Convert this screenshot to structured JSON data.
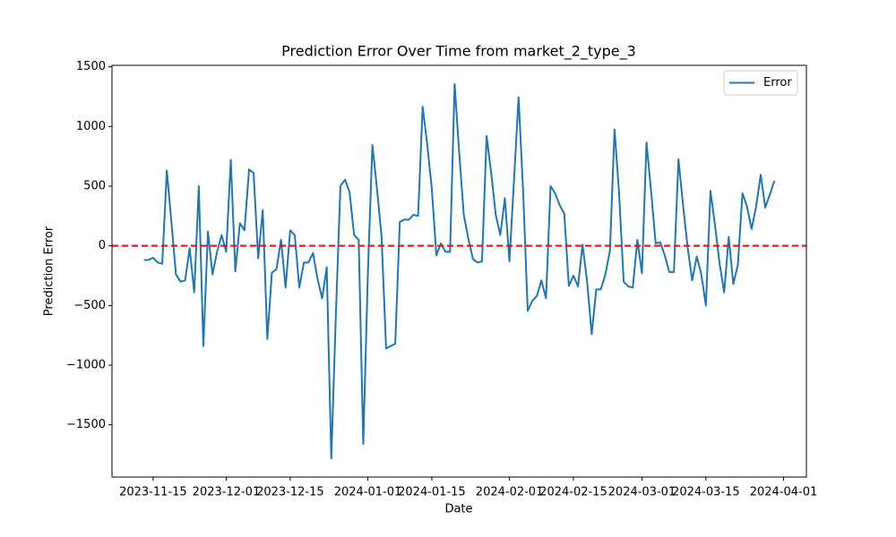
{
  "chart_data": {
    "type": "line",
    "title": "Prediction Error Over Time from market_2_type_3",
    "xlabel": "Date",
    "ylabel": "Prediction Error",
    "x": [
      "2023-11-13",
      "2023-11-14",
      "2023-11-15",
      "2023-11-16",
      "2023-11-17",
      "2023-11-18",
      "2023-11-19",
      "2023-11-20",
      "2023-11-21",
      "2023-11-22",
      "2023-11-23",
      "2023-11-24",
      "2023-11-25",
      "2023-11-26",
      "2023-11-27",
      "2023-11-28",
      "2023-11-29",
      "2023-11-30",
      "2023-12-01",
      "2023-12-02",
      "2023-12-03",
      "2023-12-04",
      "2023-12-05",
      "2023-12-06",
      "2023-12-07",
      "2023-12-08",
      "2023-12-09",
      "2023-12-10",
      "2023-12-11",
      "2023-12-12",
      "2023-12-13",
      "2023-12-14",
      "2023-12-15",
      "2023-12-16",
      "2023-12-17",
      "2023-12-18",
      "2023-12-19",
      "2023-12-20",
      "2023-12-21",
      "2023-12-22",
      "2023-12-23",
      "2023-12-24",
      "2023-12-25",
      "2023-12-26",
      "2023-12-27",
      "2023-12-28",
      "2023-12-29",
      "2023-12-30",
      "2023-12-31",
      "2024-01-01",
      "2024-01-02",
      "2024-01-03",
      "2024-01-04",
      "2024-01-05",
      "2024-01-06",
      "2024-01-07",
      "2024-01-08",
      "2024-01-09",
      "2024-01-10",
      "2024-01-11",
      "2024-01-12",
      "2024-01-13",
      "2024-01-14",
      "2024-01-15",
      "2024-01-16",
      "2024-01-17",
      "2024-01-18",
      "2024-01-19",
      "2024-01-20",
      "2024-01-21",
      "2024-01-22",
      "2024-01-23",
      "2024-01-24",
      "2024-01-25",
      "2024-01-26",
      "2024-01-27",
      "2024-01-28",
      "2024-01-29",
      "2024-01-30",
      "2024-01-31",
      "2024-02-01",
      "2024-02-02",
      "2024-02-03",
      "2024-02-04",
      "2024-02-05",
      "2024-02-06",
      "2024-02-07",
      "2024-02-08",
      "2024-02-09",
      "2024-02-10",
      "2024-02-11",
      "2024-02-12",
      "2024-02-13",
      "2024-02-14",
      "2024-02-15",
      "2024-02-16",
      "2024-02-17",
      "2024-02-18",
      "2024-02-19",
      "2024-02-20",
      "2024-02-21",
      "2024-02-22",
      "2024-02-23",
      "2024-02-24",
      "2024-02-25",
      "2024-02-26",
      "2024-02-27",
      "2024-02-28",
      "2024-02-29",
      "2024-03-01",
      "2024-03-02",
      "2024-03-03",
      "2024-03-04",
      "2024-03-05",
      "2024-03-06",
      "2024-03-07",
      "2024-03-08",
      "2024-03-09",
      "2024-03-10",
      "2024-03-11",
      "2024-03-12",
      "2024-03-13",
      "2024-03-14",
      "2024-03-15",
      "2024-03-16",
      "2024-03-17",
      "2024-03-18",
      "2024-03-19",
      "2024-03-20",
      "2024-03-21",
      "2024-03-22",
      "2024-03-23",
      "2024-03-24",
      "2024-03-25",
      "2024-03-26",
      "2024-03-27",
      "2024-03-28",
      "2024-03-29",
      "2024-03-30"
    ],
    "series": [
      {
        "name": "Error",
        "color": "#1f77b4",
        "values": [
          -120,
          -118,
          -100,
          -140,
          -150,
          630,
          200,
          -240,
          -300,
          -290,
          -20,
          -390,
          500,
          -840,
          120,
          -240,
          -50,
          90,
          -50,
          720,
          -215,
          190,
          130,
          640,
          610,
          -105,
          300,
          -780,
          -225,
          -195,
          50,
          -350,
          130,
          90,
          -350,
          -140,
          -140,
          -60,
          -280,
          -440,
          -180,
          -1780,
          -580,
          500,
          555,
          450,
          90,
          50,
          -1660,
          -240,
          845,
          480,
          80,
          -860,
          -840,
          -820,
          200,
          220,
          220,
          260,
          250,
          1165,
          850,
          480,
          -80,
          20,
          -50,
          -50,
          1355,
          780,
          260,
          60,
          -110,
          -140,
          -130,
          920,
          610,
          260,
          90,
          400,
          -130,
          550,
          1245,
          450,
          -545,
          -460,
          -420,
          -290,
          -440,
          500,
          440,
          340,
          270,
          -335,
          -250,
          -340,
          10,
          -300,
          -740,
          -365,
          -365,
          -240,
          -40,
          975,
          440,
          -300,
          -340,
          -350,
          50,
          -230,
          865,
          460,
          20,
          30,
          -80,
          -220,
          -220,
          725,
          340,
          -10,
          -290,
          -90,
          -240,
          -500,
          460,
          170,
          -150,
          -390,
          75,
          -320,
          -160,
          440,
          330,
          140,
          330,
          595,
          320,
          430,
          545
        ]
      }
    ],
    "hline": {
      "value": 0,
      "color": "#ff0000"
    },
    "xlim": [
      "2023-11-06",
      "2024-04-06"
    ],
    "xticks": [
      "2023-11-15",
      "2023-12-01",
      "2023-12-15",
      "2024-01-01",
      "2024-01-15",
      "2024-02-01",
      "2024-02-15",
      "2024-03-01",
      "2024-03-15",
      "2024-04-01"
    ],
    "ylim": [
      -1937,
      1512
    ],
    "yticks": [
      {
        "value": -1500,
        "label": "−1500"
      },
      {
        "value": -1000,
        "label": "−1000"
      },
      {
        "value": -500,
        "label": "−500"
      },
      0,
      500,
      1000,
      1500
    ],
    "legend": "upper right",
    "grid": false
  }
}
